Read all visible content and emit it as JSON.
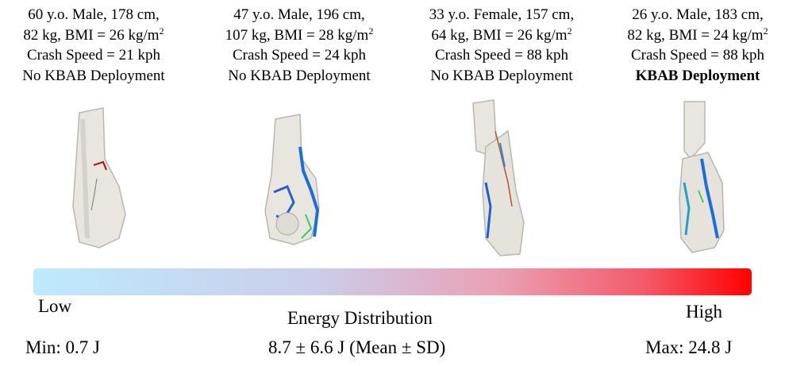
{
  "panels": [
    {
      "line1": "60 y.o. Male, 178 cm,",
      "line2": "82 kg, BMI = 26 kg/m",
      "line2_sup": "2",
      "line3": "Crash Speed = 21 kph",
      "line4": "No KBAB Deployment"
    },
    {
      "line1": "47 y.o. Male, 196 cm,",
      "line2": "107 kg, BMI = 28 kg/m",
      "line2_sup": "2",
      "line3": "Crash Speed = 24 kph",
      "line4": "No KBAB Deployment"
    },
    {
      "line1": "33 y.o. Female, 157 cm,",
      "line2": "64 kg, BMI = 26 kg/m",
      "line2_sup": "2",
      "line3": "Crash Speed = 88 kph",
      "line4": "No KBAB Deployment"
    },
    {
      "line1": "26 y.o. Male, 183 cm,",
      "line2": "82 kg, BMI = 24 kg/m",
      "line2_sup": "2",
      "line3": "Crash Speed = 88 kph",
      "line4": "KBAB Deployment"
    }
  ],
  "scale": {
    "low": "Low",
    "title": "Energy Distribution",
    "high": "High",
    "min": "Min: 0.7 J",
    "mean": "8.7 ± 6.6 J (Mean ± SD)",
    "max": "Max: 24.8 J"
  }
}
